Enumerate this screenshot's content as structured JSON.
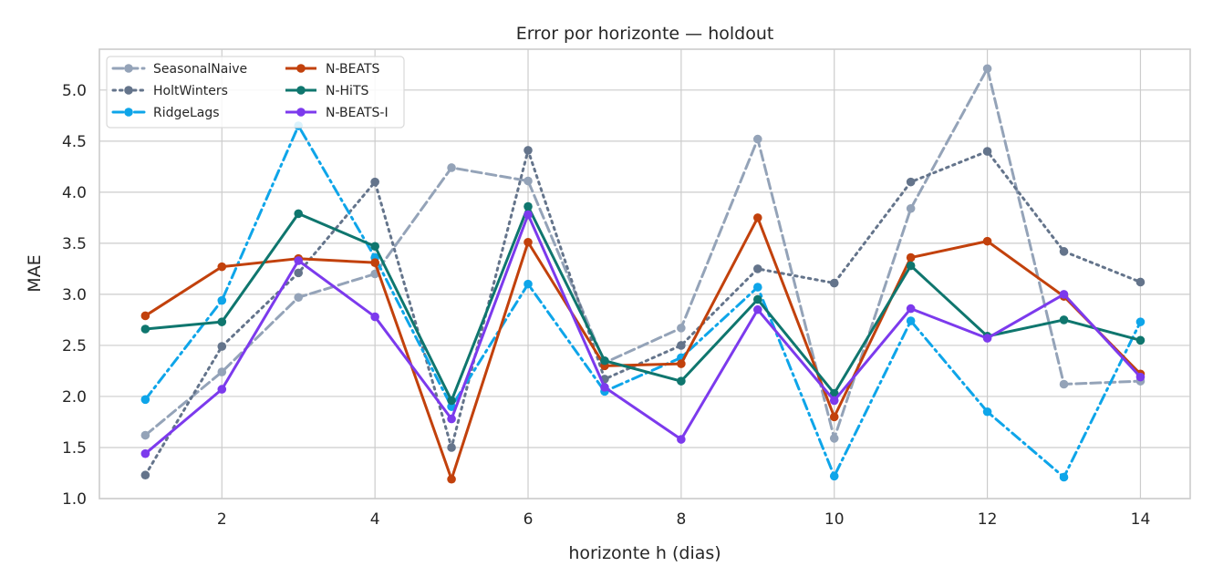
{
  "chart_data": {
    "type": "line",
    "title": "Error por horizonte — holdout",
    "xlabel": "horizonte h (dias)",
    "ylabel": "MAE",
    "x": [
      1,
      2,
      3,
      4,
      5,
      6,
      7,
      8,
      9,
      10,
      11,
      12,
      13,
      14
    ],
    "xlim": [
      0.4,
      14.65
    ],
    "ylim": [
      1.0,
      5.4
    ],
    "xticks": [
      2,
      4,
      6,
      8,
      10,
      12,
      14
    ],
    "yticks": [
      1.0,
      1.5,
      2.0,
      2.5,
      3.0,
      3.5,
      4.0,
      4.5,
      5.0
    ],
    "grid": true,
    "legend_position": "top-left",
    "series": [
      {
        "name": "SeasonalNaive",
        "color": "#94a3b8",
        "dash": "dashed",
        "values": [
          1.62,
          2.24,
          2.97,
          3.2,
          4.24,
          4.11,
          2.33,
          2.67,
          4.52,
          1.59,
          3.84,
          5.21,
          2.12,
          2.15
        ]
      },
      {
        "name": "HoltWinters",
        "color": "#64748b",
        "dash": "dotted",
        "values": [
          1.23,
          2.49,
          3.21,
          4.1,
          1.5,
          4.41,
          2.17,
          2.5,
          3.25,
          3.11,
          4.1,
          4.4,
          3.42,
          3.12
        ]
      },
      {
        "name": "RidgeLags",
        "color": "#0ea5e9",
        "dash": "dashdot",
        "values": [
          1.97,
          2.94,
          4.65,
          3.36,
          1.9,
          3.1,
          2.05,
          2.38,
          3.07,
          1.22,
          2.74,
          1.85,
          1.21,
          2.73
        ]
      },
      {
        "name": "N-BEATS",
        "color": "#c2410c",
        "dash": "solid",
        "values": [
          2.79,
          3.27,
          3.35,
          3.31,
          1.19,
          3.51,
          2.3,
          2.32,
          3.75,
          1.8,
          3.36,
          3.52,
          2.98,
          2.22
        ]
      },
      {
        "name": "N-HiTS",
        "color": "#0f766e",
        "dash": "solid",
        "values": [
          2.66,
          2.73,
          3.79,
          3.47,
          1.96,
          3.86,
          2.35,
          2.15,
          2.95,
          2.03,
          3.28,
          2.59,
          2.75,
          2.55
        ]
      },
      {
        "name": "N-BEATS-I",
        "color": "#7c3aed",
        "dash": "solid",
        "values": [
          1.44,
          2.07,
          3.33,
          2.78,
          1.78,
          3.78,
          2.09,
          1.58,
          2.85,
          1.96,
          2.86,
          2.57,
          3.0,
          2.19
        ]
      }
    ]
  }
}
